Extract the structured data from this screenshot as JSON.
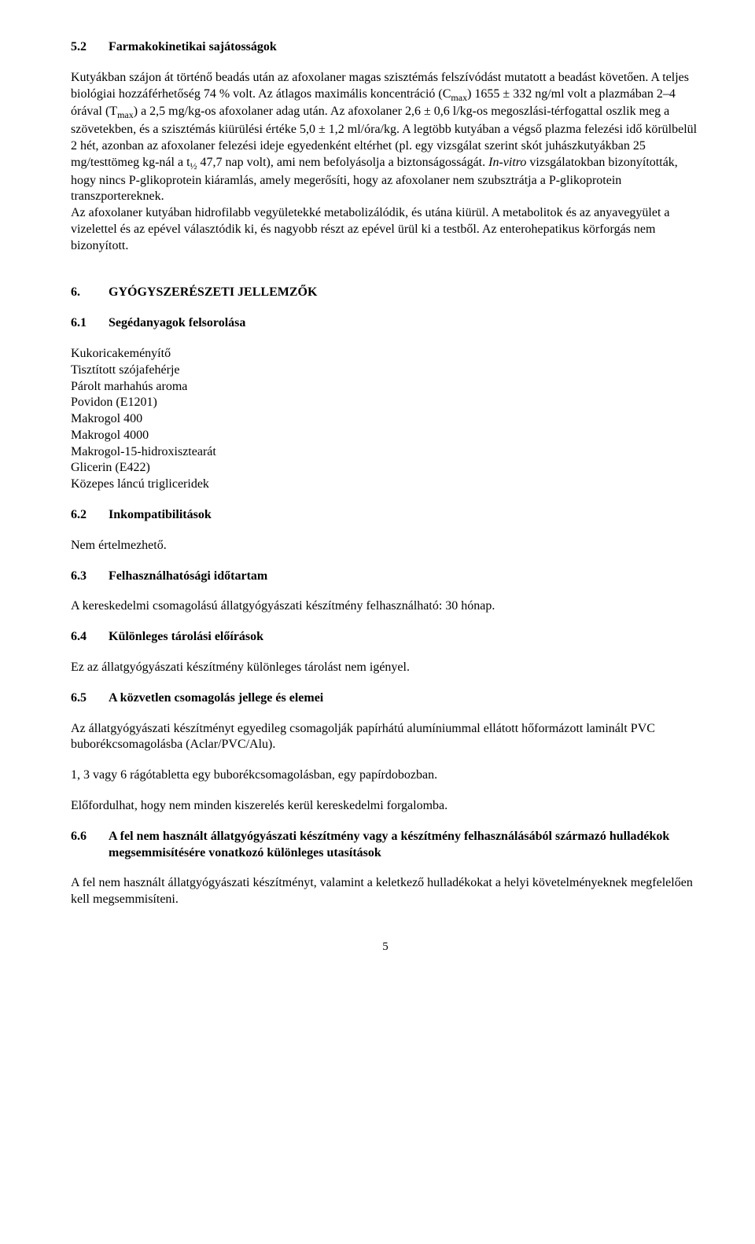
{
  "s52": {
    "num": "5.2",
    "title": "Farmakokinetikai sajátosságok",
    "p1a": "Kutyákban szájon át történő beadás után az afoxolaner magas szisztémás felszívódást mutatott a beadást követően. A teljes biológiai hozzáférhetőség 74 % volt. Az átlagos maximális koncentráció (C",
    "p1b": ") 1655 ± 332 ng/ml volt a plazmában 2–4 órával (T",
    "p1c": ") a 2,5 mg/kg-os afoxolaner adag után. Az afoxolaner 2,6 ± 0,6 l/kg-os megoszlási-térfogattal oszlik meg a szövetekben, és a szisztémás kiürülési értéke 5,0 ± 1,2 ml/óra/kg. A legtöbb kutyában a végső plazma felezési idő körülbelül 2 hét, azonban az afoxolaner felezési ideje egyedenként eltérhet (pl. egy vizsgálat szerint skót juhászkutyákban 25 mg/testtömeg kg-nál a t",
    "p1d": " 47,7 nap volt), ami nem befolyásolja a biztonságosságát. ",
    "p1e": "In-vitro",
    "p1f": " vizsgálatokban bizonyították, hogy nincs P-glikoprotein kiáramlás, amely megerősíti, hogy az afoxolaner nem szubsztrátja a P-glikoprotein transzportereknek.",
    "p2": "Az afoxolaner kutyában hidrofilabb vegyületekké metabolizálódik, és utána kiürül. A metabolitok és az anyavegyület a vizelettel és az epével választódik ki, és nagyobb részt az epével ürül ki a testből. Az enterohepatikus körforgás nem bizonyított.",
    "sub_max1": "max",
    "sub_max2": "max",
    "sub_half": "½"
  },
  "s6": {
    "num": "6.",
    "title": "GYÓGYSZERÉSZETI JELLEMZŐK"
  },
  "s61": {
    "num": "6.1",
    "title": "Segédanyagok felsorolása",
    "items": [
      "Kukoricakeményítő",
      "Tisztított szójafehérje",
      "Párolt marhahús aroma",
      "Povidon (E1201)",
      "Makrogol 400",
      "Makrogol 4000",
      "Makrogol-15-hidroxisztearát",
      "Glicerin (E422)",
      "Közepes láncú trigliceridek"
    ]
  },
  "s62": {
    "num": "6.2",
    "title": "Inkompatibilitások",
    "body": "Nem értelmezhető."
  },
  "s63": {
    "num": "6.3",
    "title": "Felhasználhatósági időtartam",
    "body": "A kereskedelmi csomagolású állatgyógyászati készítmény felhasználható: 30 hónap."
  },
  "s64": {
    "num": "6.4",
    "title": "Különleges tárolási előírások",
    "body": "Ez az állatgyógyászati készítmény különleges tárolást nem igényel."
  },
  "s65": {
    "num": "6.5",
    "title": "A közvetlen csomagolás jellege és elemei",
    "p1": "Az állatgyógyászati készítményt egyedileg csomagolják papírhátú alumíniummal ellátott hőformázott laminált PVC buborékcsomagolásba (Aclar/PVC/Alu).",
    "p2": "1, 3 vagy 6 rágótabletta egy buborékcsomagolásban, egy papírdobozban.",
    "p3": "Előfordulhat, hogy nem minden kiszerelés kerül kereskedelmi forgalomba."
  },
  "s66": {
    "num": "6.6",
    "title": "A fel nem használt állatgyógyászati készítmény vagy a készítmény felhasználásából származó hulladékok megsemmisítésére vonatkozó különleges utasítások",
    "body": "A fel nem használt állatgyógyászati készítményt, valamint a keletkező hulladékokat a helyi követelményeknek megfelelően kell megsemmisíteni."
  },
  "page_number": "5"
}
